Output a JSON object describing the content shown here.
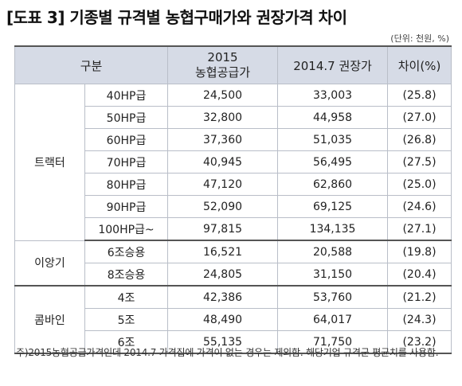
{
  "title": "[도표 3] 기종별 규격별 농협구매가와 권장가격 차이",
  "unit": "(단위: 천원, %)",
  "table": {
    "headers": {
      "category": "구분",
      "price2015_line1": "2015",
      "price2015_line2": "농협공급가",
      "price2014": "2014.7 권장가",
      "diff": "차이(%)"
    },
    "groups": [
      {
        "name": "트랙터",
        "rows": [
          {
            "spec": "40HP급",
            "price2015": "24,500",
            "price2014": "33,003",
            "diff": "(25.8)"
          },
          {
            "spec": "50HP급",
            "price2015": "32,800",
            "price2014": "44,958",
            "diff": "(27.0)"
          },
          {
            "spec": "60HP급",
            "price2015": "37,360",
            "price2014": "51,035",
            "diff": "(26.8)"
          },
          {
            "spec": "70HP급",
            "price2015": "40,945",
            "price2014": "56,495",
            "diff": "(27.5)"
          },
          {
            "spec": "80HP급",
            "price2015": "47,120",
            "price2014": "62,860",
            "diff": "(25.0)"
          },
          {
            "spec": "90HP급",
            "price2015": "52,090",
            "price2014": "69,125",
            "diff": "(24.6)"
          },
          {
            "spec": "100HP급~",
            "price2015": "97,815",
            "price2014": "134,135",
            "diff": "(27.1)"
          }
        ]
      },
      {
        "name": "이앙기",
        "rows": [
          {
            "spec": "6조승용",
            "price2015": "16,521",
            "price2014": "20,588",
            "diff": "(19.8)"
          },
          {
            "spec": "8조승용",
            "price2015": "24,805",
            "price2014": "31,150",
            "diff": "(20.4)"
          }
        ]
      },
      {
        "name": "콤바인",
        "rows": [
          {
            "spec": "4조",
            "price2015": "42,386",
            "price2014": "53,760",
            "diff": "(21.2)"
          },
          {
            "spec": "5조",
            "price2015": "48,490",
            "price2014": "64,017",
            "diff": "(24.3)"
          },
          {
            "spec": "6조",
            "price2015": "55,135",
            "price2014": "71,750",
            "diff": "(23.2)"
          }
        ]
      }
    ]
  },
  "note": "주)2015농협공급가격인데 2014.7 가격집에 가격이 없는 경우는 제외함. 해당기업 규격군 평균치를 사용함."
}
